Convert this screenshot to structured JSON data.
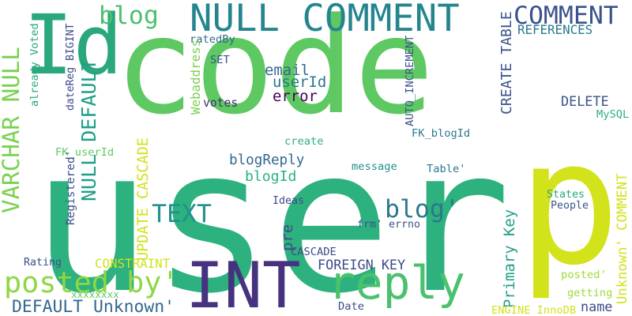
{
  "cloud": {
    "words": [
      {
        "text": "user",
        "color": "#2db17e"
      },
      {
        "text": "code",
        "color": "#5ec962"
      },
      {
        "text": "Id",
        "color": "#2aa77b"
      },
      {
        "text": "p",
        "color": "#d2e21b"
      },
      {
        "text": "INT",
        "color": "#46327e"
      },
      {
        "text": "reply",
        "color": "#4ac16d"
      },
      {
        "text": "NULL COMMENT",
        "color": "#25858e"
      },
      {
        "text": "COMMENT",
        "color": "#3b528b"
      },
      {
        "text": "blog",
        "color": "#4ac16d"
      },
      {
        "text": "posted by'",
        "color": "#8fd744"
      },
      {
        "text": "NULL DEFAULT",
        "color": "#1f9e89"
      },
      {
        "text": "VARCHAR NULL",
        "color": "#7ad151"
      },
      {
        "text": "TEXT",
        "color": "#21918c"
      },
      {
        "text": "blog'",
        "color": "#2a788e"
      },
      {
        "text": "DEFAULT Unknown'",
        "color": "#31688e"
      },
      {
        "text": "Unknown' COMMENT",
        "color": "#d2e21b"
      },
      {
        "text": "email",
        "color": "#31688e"
      },
      {
        "text": "userId",
        "color": "#2a788e"
      },
      {
        "text": "error",
        "color": "#440154"
      },
      {
        "text": "blogReply",
        "color": "#31688e"
      },
      {
        "text": "blogId",
        "color": "#2db17e"
      },
      {
        "text": "UPDATE CASCADE",
        "color": "#d2e21b"
      },
      {
        "text": "CREATE TABLE",
        "color": "#3b528b"
      },
      {
        "text": "REFERENCES",
        "color": "#2a788e"
      },
      {
        "text": "DELETE",
        "color": "#3b528b"
      },
      {
        "text": "FOREIGN KEY",
        "color": "#3e4a89"
      },
      {
        "text": "CONSTRAINT",
        "color": "#d2e21b"
      },
      {
        "text": "Primary Key",
        "color": "#1f9e89"
      },
      {
        "text": "name",
        "color": "#3e4a89"
      },
      {
        "text": "votes",
        "color": "#472d7b"
      },
      {
        "text": "ratedBy",
        "color": "#31688e"
      },
      {
        "text": "SET",
        "color": "#3b528b"
      },
      {
        "text": "Webaddress",
        "color": "#7ad151"
      },
      {
        "text": "AUTO_INCREMENT",
        "color": "#3b528b"
      },
      {
        "text": "FK_blogId",
        "color": "#2a788e"
      },
      {
        "text": "FK_userId",
        "color": "#5ec962"
      },
      {
        "text": "create",
        "color": "#2db17e"
      },
      {
        "text": "message",
        "color": "#21918c"
      },
      {
        "text": "Table'",
        "color": "#2a788e"
      },
      {
        "text": "Ideas",
        "color": "#3e4a89"
      },
      {
        "text": "frm' errno",
        "color": "#3b528b"
      },
      {
        "text": "pre",
        "color": "#3e4a89"
      },
      {
        "text": "CASCADE",
        "color": "#3e4a89"
      },
      {
        "text": "States",
        "color": "#2aa77b"
      },
      {
        "text": "People",
        "color": "#39568c"
      },
      {
        "text": "MySQL",
        "color": "#2db17e"
      },
      {
        "text": "Rating",
        "color": "#3b528b"
      },
      {
        "text": "xxxxxxxx",
        "color": "#5ec962"
      },
      {
        "text": "Date",
        "color": "#3e4a89"
      },
      {
        "text": "posted'",
        "color": "#a0da39"
      },
      {
        "text": "getting",
        "color": "#a0da39"
      },
      {
        "text": "ENGINE InnoDB",
        "color": "#d2e21b"
      },
      {
        "text": "already Voted",
        "color": "#2aa77b"
      },
      {
        "text": "dateReg BIGINT",
        "color": "#3e4a89"
      },
      {
        "text": "Registered'",
        "color": "#3b528b"
      }
    ]
  }
}
